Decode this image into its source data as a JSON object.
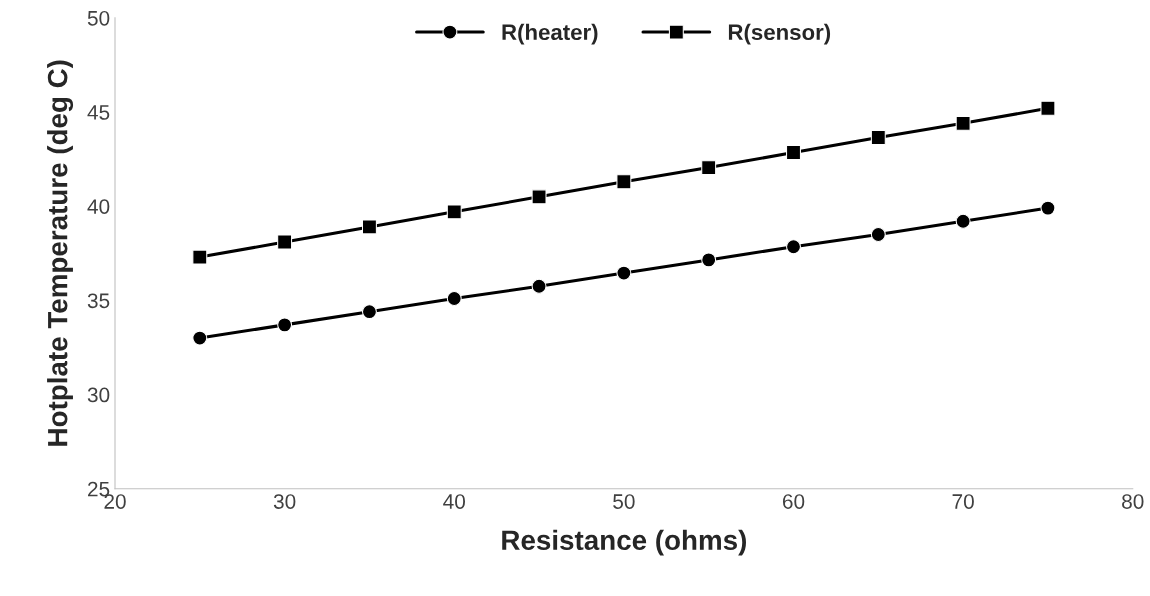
{
  "chart_data": {
    "type": "line",
    "xlabel": "Resistance (ohms)",
    "ylabel": "Hotplate Temperature (deg C)",
    "x": [
      25,
      30,
      35,
      40,
      45,
      50,
      55,
      60,
      65,
      70,
      75
    ],
    "series": [
      {
        "name": "R(heater)",
        "color": "#000000",
        "marker": "circle",
        "values": [
          33.0,
          33.7,
          34.4,
          35.1,
          35.75,
          36.45,
          37.15,
          37.85,
          38.5,
          39.2,
          39.9
        ]
      },
      {
        "name": "R(sensor)",
        "color": "#000000",
        "marker": "square",
        "values": [
          37.3,
          38.1,
          38.9,
          39.7,
          40.5,
          41.3,
          42.05,
          42.85,
          43.65,
          44.4,
          45.2
        ]
      }
    ],
    "xlim": [
      20,
      80
    ],
    "xticks": [
      20,
      30,
      40,
      50,
      60,
      70,
      80
    ],
    "ylim": [
      25,
      50
    ],
    "yticks": [
      25,
      30,
      35,
      40,
      45,
      50
    ],
    "grid": false,
    "legend": "top",
    "line_style": "solid"
  }
}
